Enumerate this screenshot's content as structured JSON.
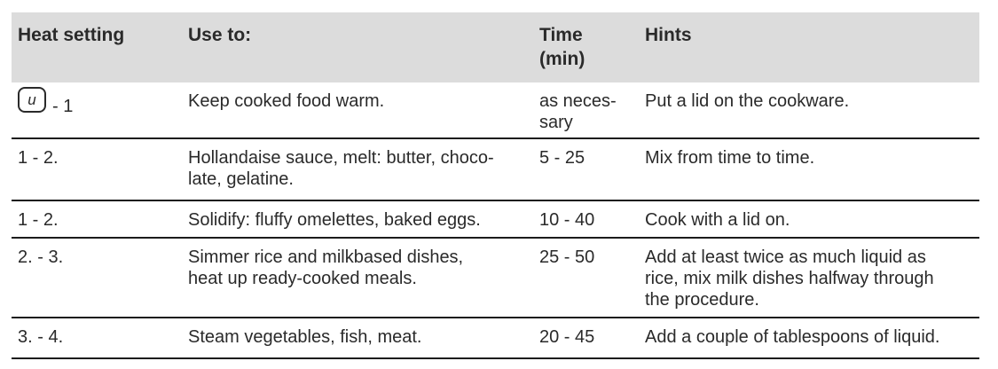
{
  "colors": {
    "header_background": "#dcdcdc",
    "rule_line": "#1c1c1c",
    "text": "#2a2a2a"
  },
  "table": {
    "columns": [
      {
        "label": "Heat setting"
      },
      {
        "label": "Use to:"
      },
      {
        "label": "Time\n(min)"
      },
      {
        "label": "Hints"
      }
    ],
    "keep_warm_symbol": "u",
    "rows": [
      {
        "heat_setting": "- 1",
        "use_to": "Keep cooked food warm.",
        "time": "as neces-\nsary",
        "hints": "Put a lid on the cookware."
      },
      {
        "heat_setting": "1 - 2.",
        "use_to": "Hollandaise sauce, melt: butter, choco-\nlate, gelatine.",
        "time": "5 - 25",
        "hints": "Mix from time to time."
      },
      {
        "heat_setting": "1 - 2.",
        "use_to": "Solidify: fluffy omelettes, baked eggs.",
        "time": "10 - 40",
        "hints": "Cook with a lid on."
      },
      {
        "heat_setting": "2. - 3.",
        "use_to": "Simmer rice and milkbased dishes,\nheat up ready-cooked meals.",
        "time": "25 - 50",
        "hints": "Add at least twice as much liquid as\nrice, mix milk dishes halfway through\nthe procedure."
      },
      {
        "heat_setting": "3. - 4.",
        "use_to": "Steam vegetables, fish, meat.",
        "time": "20 - 45",
        "hints": "Add a couple of tablespoons of liquid."
      }
    ]
  }
}
